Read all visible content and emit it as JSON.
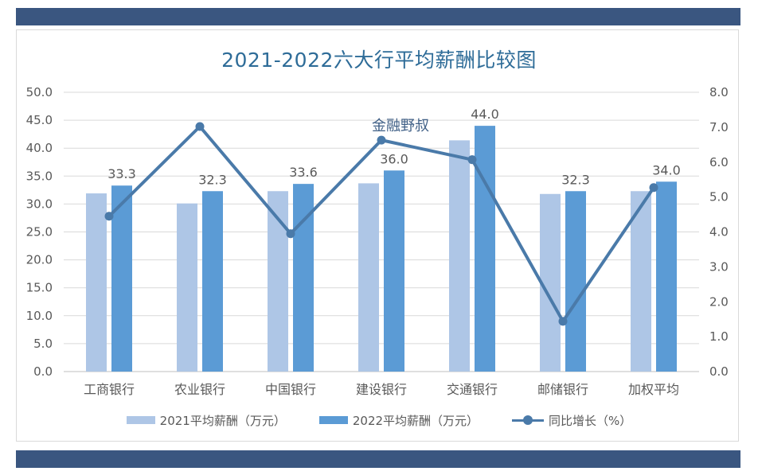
{
  "chart_data": {
    "type": "bar",
    "title": "2021-2022六大行平均薪酬比较图",
    "watermark": "金融野叔",
    "categories": [
      "工商银行",
      "农业银行",
      "中国银行",
      "建设银行",
      "交通银行",
      "邮储银行",
      "加权平均"
    ],
    "series": [
      {
        "name": "2021平均薪酬（万元）",
        "type": "bar",
        "axis": "left",
        "color": "#aec6e6",
        "values": [
          31.9,
          30.1,
          32.3,
          33.7,
          41.4,
          31.8,
          32.3
        ]
      },
      {
        "name": "2022平均薪酬（万元）",
        "type": "bar",
        "axis": "left",
        "color": "#5b9bd5",
        "values": [
          33.3,
          32.3,
          33.6,
          36.0,
          44.0,
          32.3,
          34.0
        ],
        "labels": [
          "33.3",
          "32.3",
          "33.6",
          "36.0",
          "44.0",
          "32.3",
          "34.0"
        ]
      },
      {
        "name": "同比增长（%）",
        "type": "line",
        "axis": "right",
        "color": "#4a7aa9",
        "values": [
          4.45,
          7.02,
          3.95,
          6.63,
          6.07,
          1.44,
          5.27
        ]
      }
    ],
    "y_left": {
      "min": 0,
      "max": 50,
      "step": 5,
      "ticks": [
        "0.0",
        "5.0",
        "10.0",
        "15.0",
        "20.0",
        "25.0",
        "30.0",
        "35.0",
        "40.0",
        "45.0",
        "50.0"
      ]
    },
    "y_right": {
      "min": 0,
      "max": 8,
      "step": 1,
      "ticks": [
        "0.0",
        "1.0",
        "2.0",
        "3.0",
        "4.0",
        "5.0",
        "6.0",
        "7.0",
        "8.0"
      ]
    },
    "grid": true,
    "legend_position": "bottom"
  },
  "colors": {
    "band": "#3a5680",
    "title": "#2e6c98",
    "axis_text": "#595959",
    "grid": "#d9d9d9"
  }
}
